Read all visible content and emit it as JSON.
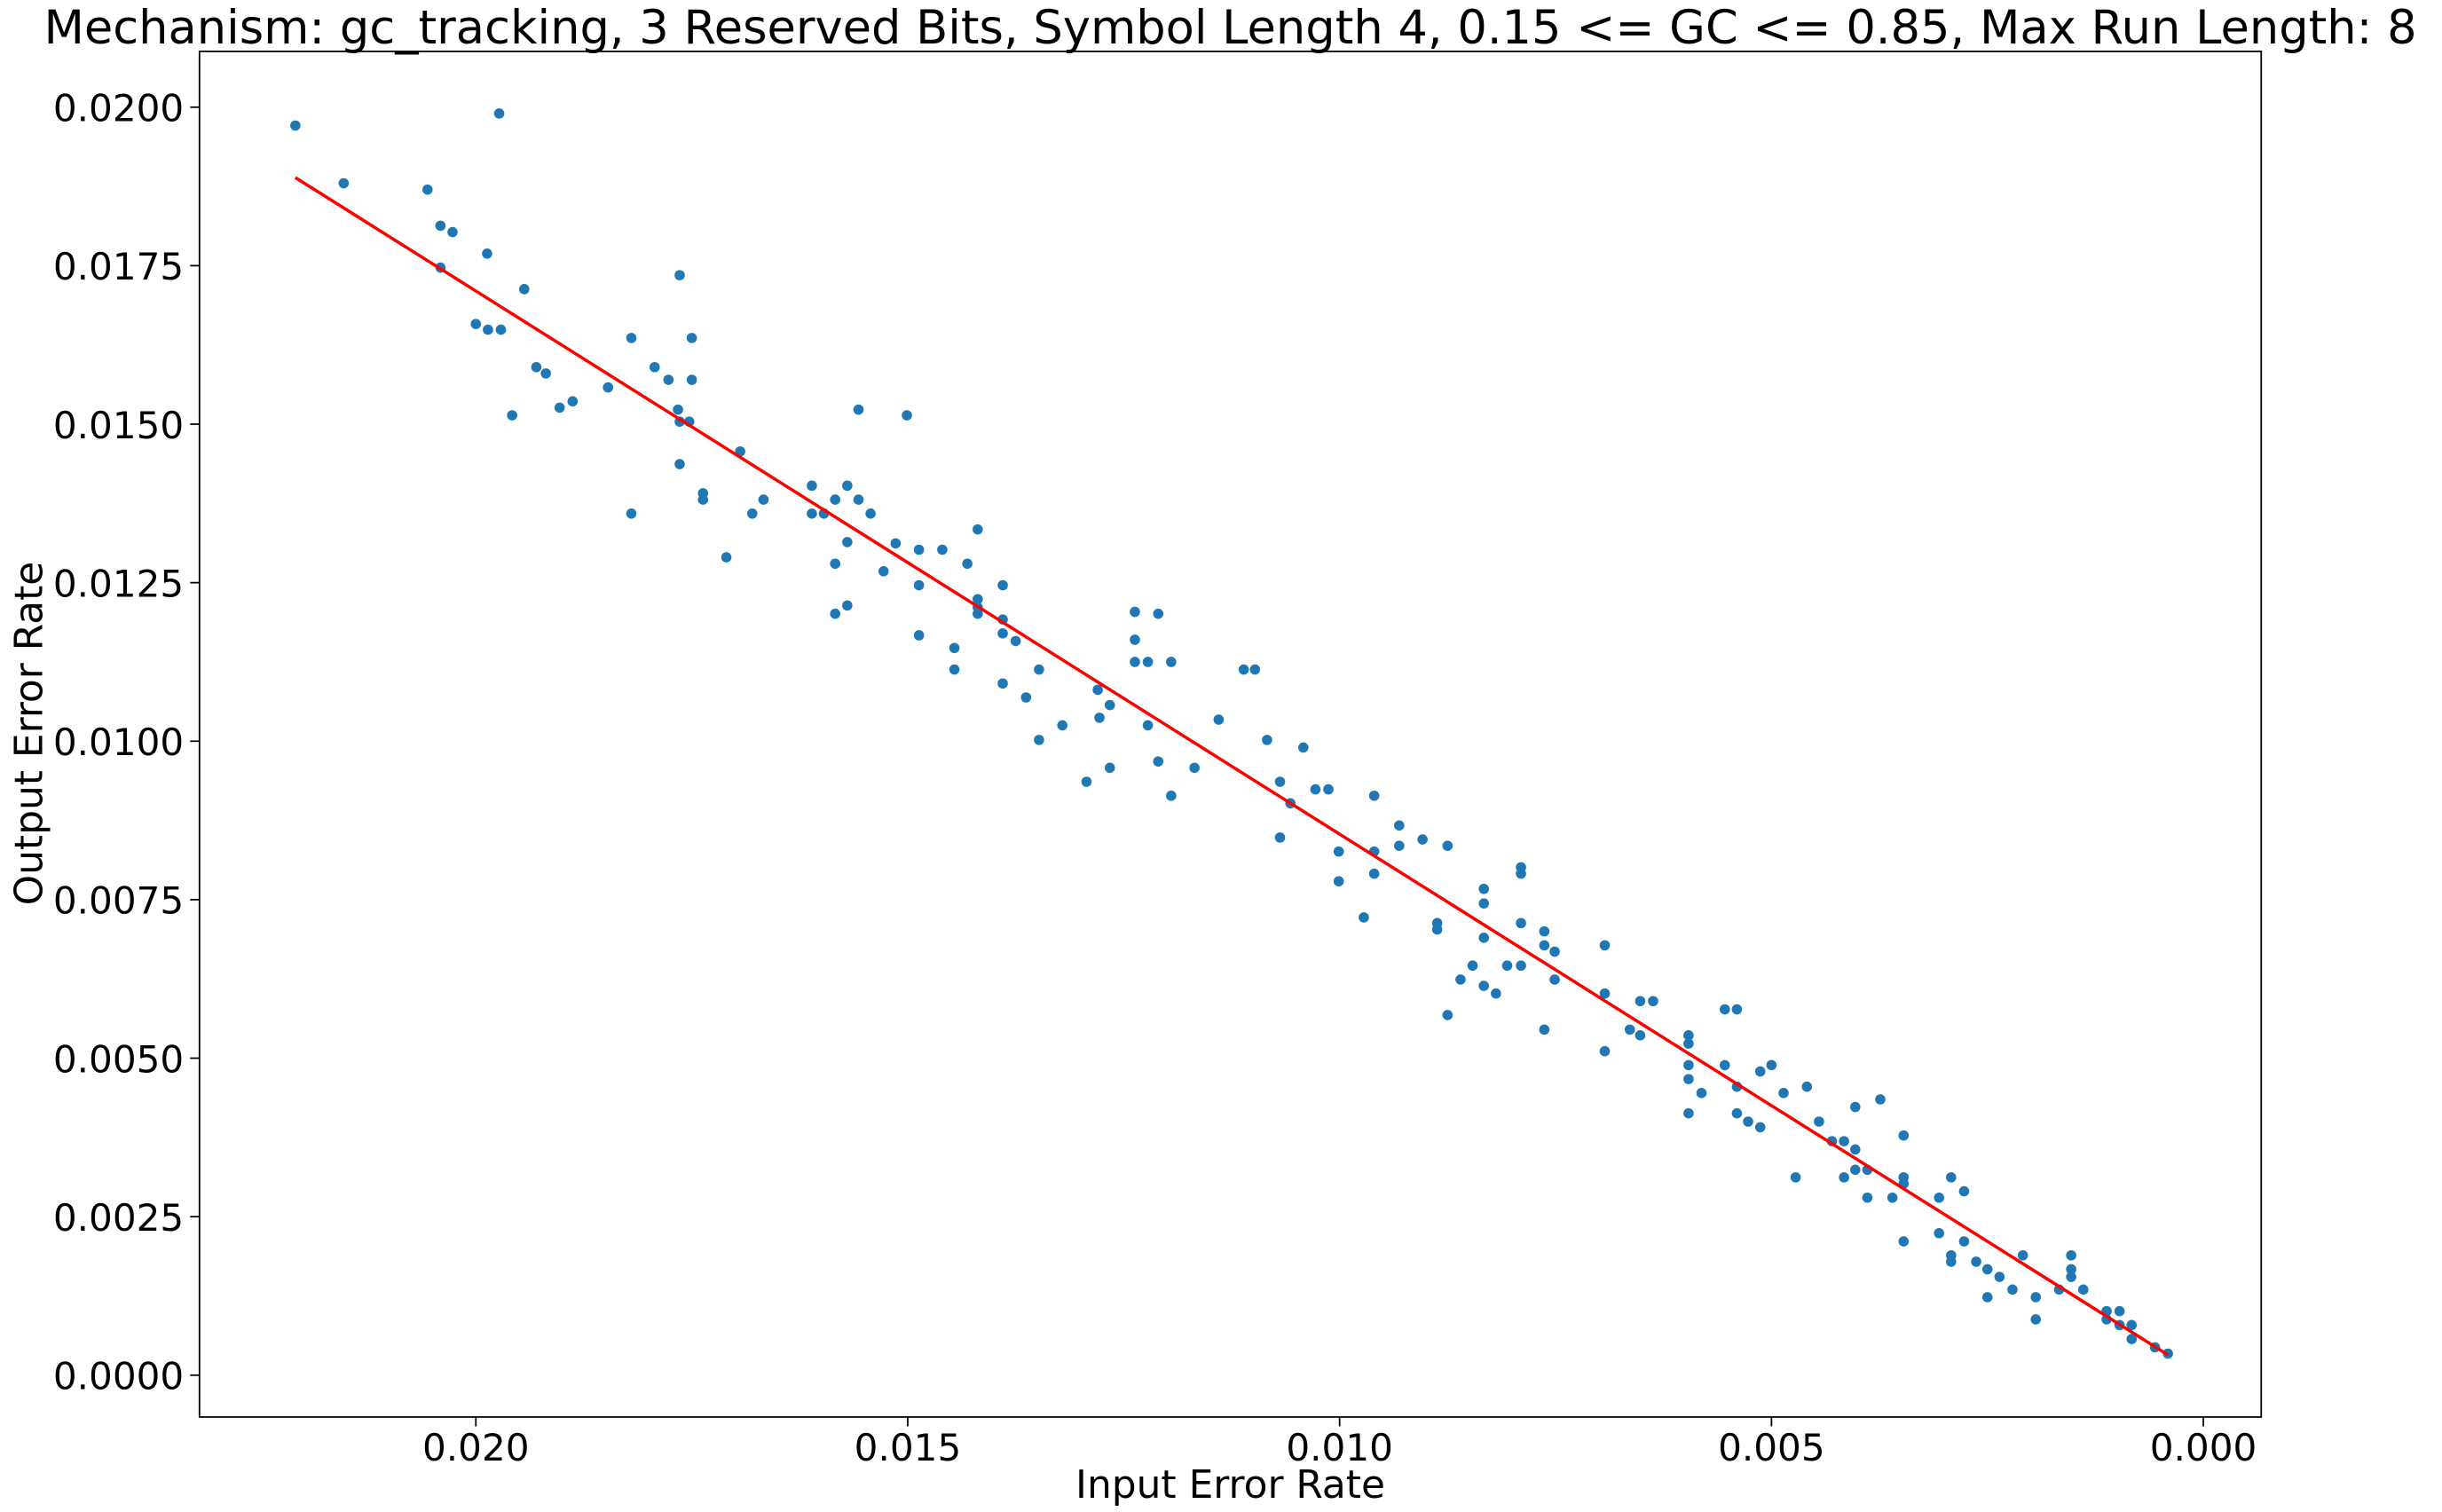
{
  "chart_data": {
    "type": "scatter",
    "title": "Mechanism: gc_tracking, 3 Reserved Bits, Symbol Length 4, 0.15 <= GC <= 0.85, Max Run Length: 8",
    "xlabel": "Input Error Rate",
    "ylabel": "Output Error Rate",
    "xlim": [
      0.0232,
      -0.00067
    ],
    "ylim": [
      -0.00066,
      0.02088
    ],
    "xticks": [
      {
        "value": 0.02,
        "label": "0.020"
      },
      {
        "value": 0.015,
        "label": "0.015"
      },
      {
        "value": 0.01,
        "label": "0.010"
      },
      {
        "value": 0.005,
        "label": "0.005"
      },
      {
        "value": 0,
        "label": "0.000"
      }
    ],
    "yticks": [
      {
        "value": 0,
        "label": "0.0000"
      },
      {
        "value": 0.0025,
        "label": "0.0025"
      },
      {
        "value": 0.005,
        "label": "0.0050"
      },
      {
        "value": 0.0075,
        "label": "0.0075"
      },
      {
        "value": 0.01,
        "label": "0.0100"
      },
      {
        "value": 0.0125,
        "label": "0.0125"
      },
      {
        "value": 0.015,
        "label": "0.0150"
      },
      {
        "value": 0.0175,
        "label": "0.0175"
      },
      {
        "value": 0.02,
        "label": "0.0200"
      }
    ],
    "series": [
      {
        "type": "scatter",
        "color": "#1f77b4",
        "x": [
          0.02209,
          0.02153,
          0.02056,
          0.02041,
          0.02027,
          0.02041,
          0.01987,
          0.01973,
          0.02,
          0.01986,
          0.01971,
          0.01958,
          0.01944,
          0.0193,
          0.01919,
          0.01903,
          0.01888,
          0.01847,
          0.0182,
          0.0182,
          0.01793,
          0.01777,
          0.01764,
          0.01766,
          0.01764,
          0.01764,
          0.0175,
          0.0175,
          0.01753,
          0.01737,
          0.01737,
          0.0171,
          0.01694,
          0.0168,
          0.01667,
          0.01611,
          0.01611,
          0.01597,
          0.01584,
          0.01584,
          0.01584,
          0.0157,
          0.0157,
          0.0157,
          0.01557,
          0.01557,
          0.01543,
          0.01528,
          0.01514,
          0.01501,
          0.01487,
          0.01487,
          0.01487,
          0.0146,
          0.01446,
          0.01446,
          0.01431,
          0.01419,
          0.01419,
          0.01419,
          0.01419,
          0.0139,
          0.0139,
          0.0139,
          0.0139,
          0.01375,
          0.01363,
          0.01348,
          0.01348,
          0.01321,
          0.01293,
          0.0128,
          0.01278,
          0.01266,
          0.01266,
          0.01237,
          0.01237,
          0.01237,
          0.01222,
          0.01222,
          0.0121,
          0.0121,
          0.01195,
          0.01195,
          0.01168,
          0.0114,
          0.01111,
          0.01098,
          0.01084,
          0.01069,
          0.01069,
          0.01057,
          0.01042,
          0.01028,
          0.01013,
          0.01001,
          0.01001,
          0.00972,
          0.0096,
          0.0096,
          0.0096,
          0.00931,
          0.00931,
          0.00904,
          0.00887,
          0.00887,
          0.00875,
          0.00875,
          0.0086,
          0.00846,
          0.00833,
          0.00833,
          0.00833,
          0.00833,
          0.00819,
          0.00806,
          0.0079,
          0.0079,
          0.0079,
          0.0079,
          0.00763,
          0.00763,
          0.00763,
          0.00751,
          0.00751,
          0.00693,
          0.00693,
          0.00693,
          0.00664,
          0.00652,
          0.00652,
          0.00637,
          0.00596,
          0.00596,
          0.00596,
          0.00596,
          0.00596,
          0.00581,
          0.00554,
          0.0054,
          0.00554,
          0.0054,
          0.0054,
          0.00527,
          0.00513,
          0.00513,
          0.005,
          0.00486,
          0.00472,
          0.00459,
          0.00445,
          0.0043,
          0.00416,
          0.00416,
          0.00403,
          0.00403,
          0.00403,
          0.00389,
          0.00389,
          0.00374,
          0.0036,
          0.00347,
          0.00347,
          0.00347,
          0.00347,
          0.00306,
          0.00306,
          0.00292,
          0.00292,
          0.00292,
          0.00277,
          0.00277,
          0.00263,
          0.0025,
          0.0025,
          0.00236,
          0.00221,
          0.00209,
          0.00194,
          0.00194,
          0.00167,
          0.00153,
          0.00153,
          0.00153,
          0.00139,
          0.00112,
          0.00112,
          0.00097,
          0.00097,
          0.00083,
          0.00083,
          0.00056,
          0.00041
        ],
        "values": [
          0.01971,
          0.0188,
          0.0187,
          0.01813,
          0.01803,
          0.01747,
          0.01769,
          0.0199,
          0.01658,
          0.01649,
          0.01649,
          0.01514,
          0.01713,
          0.0159,
          0.0158,
          0.01526,
          0.01536,
          0.01558,
          0.01636,
          0.01359,
          0.0159,
          0.0157,
          0.01735,
          0.01523,
          0.01504,
          0.01437,
          0.0157,
          0.01636,
          0.01504,
          0.01391,
          0.01381,
          0.0129,
          0.01457,
          0.01359,
          0.01381,
          0.01403,
          0.01359,
          0.01359,
          0.01381,
          0.0128,
          0.01201,
          0.01403,
          0.01314,
          0.01214,
          0.01523,
          0.01381,
          0.01359,
          0.01268,
          0.01312,
          0.01514,
          0.01302,
          0.01246,
          0.01167,
          0.01302,
          0.01147,
          0.01113,
          0.0128,
          0.01334,
          0.01224,
          0.01211,
          0.01201,
          0.01246,
          0.01192,
          0.0117,
          0.01091,
          0.01158,
          0.01069,
          0.01113,
          0.01002,
          0.01025,
          0.00936,
          0.01081,
          0.01037,
          0.01057,
          0.00958,
          0.01204,
          0.0116,
          0.01125,
          0.01125,
          0.01025,
          0.01201,
          0.00968,
          0.01125,
          0.00914,
          0.00958,
          0.01034,
          0.01113,
          0.01113,
          0.01002,
          0.00936,
          0.00848,
          0.00902,
          0.0099,
          0.00924,
          0.00924,
          0.00826,
          0.00779,
          0.00722,
          0.00914,
          0.00826,
          0.00791,
          0.00867,
          0.00835,
          0.00845,
          0.00713,
          0.00703,
          0.00835,
          0.00568,
          0.00624,
          0.00646,
          0.00767,
          0.00744,
          0.0069,
          0.00614,
          0.00602,
          0.00646,
          0.00801,
          0.00791,
          0.00713,
          0.00646,
          0.007,
          0.00678,
          0.00545,
          0.00668,
          0.00624,
          0.00678,
          0.00602,
          0.00511,
          0.00545,
          0.0059,
          0.00536,
          0.0059,
          0.00536,
          0.00523,
          0.00489,
          0.00467,
          0.00413,
          0.00445,
          0.00577,
          0.00577,
          0.00489,
          0.00455,
          0.00413,
          0.004,
          0.00391,
          0.00479,
          0.00489,
          0.00445,
          0.00312,
          0.00455,
          0.004,
          0.00369,
          0.00369,
          0.00312,
          0.00423,
          0.00356,
          0.00324,
          0.0028,
          0.00324,
          0.00435,
          0.0028,
          0.00378,
          0.00312,
          0.00302,
          0.00211,
          0.0028,
          0.00224,
          0.00312,
          0.00189,
          0.00179,
          0.0029,
          0.00211,
          0.00179,
          0.00167,
          0.00123,
          0.00155,
          0.00135,
          0.00189,
          0.00123,
          0.00088,
          0.00135,
          0.00189,
          0.00167,
          0.00155,
          0.00135,
          0.00101,
          0.00088,
          0.00101,
          0.00079,
          0.00079,
          0.00057,
          0.00044,
          0.00034
        ]
      },
      {
        "type": "line",
        "color": "#ff0000",
        "x": [
          0.02209,
          0.00041
        ],
        "values": [
          0.01889,
          0.00032
        ]
      }
    ]
  }
}
